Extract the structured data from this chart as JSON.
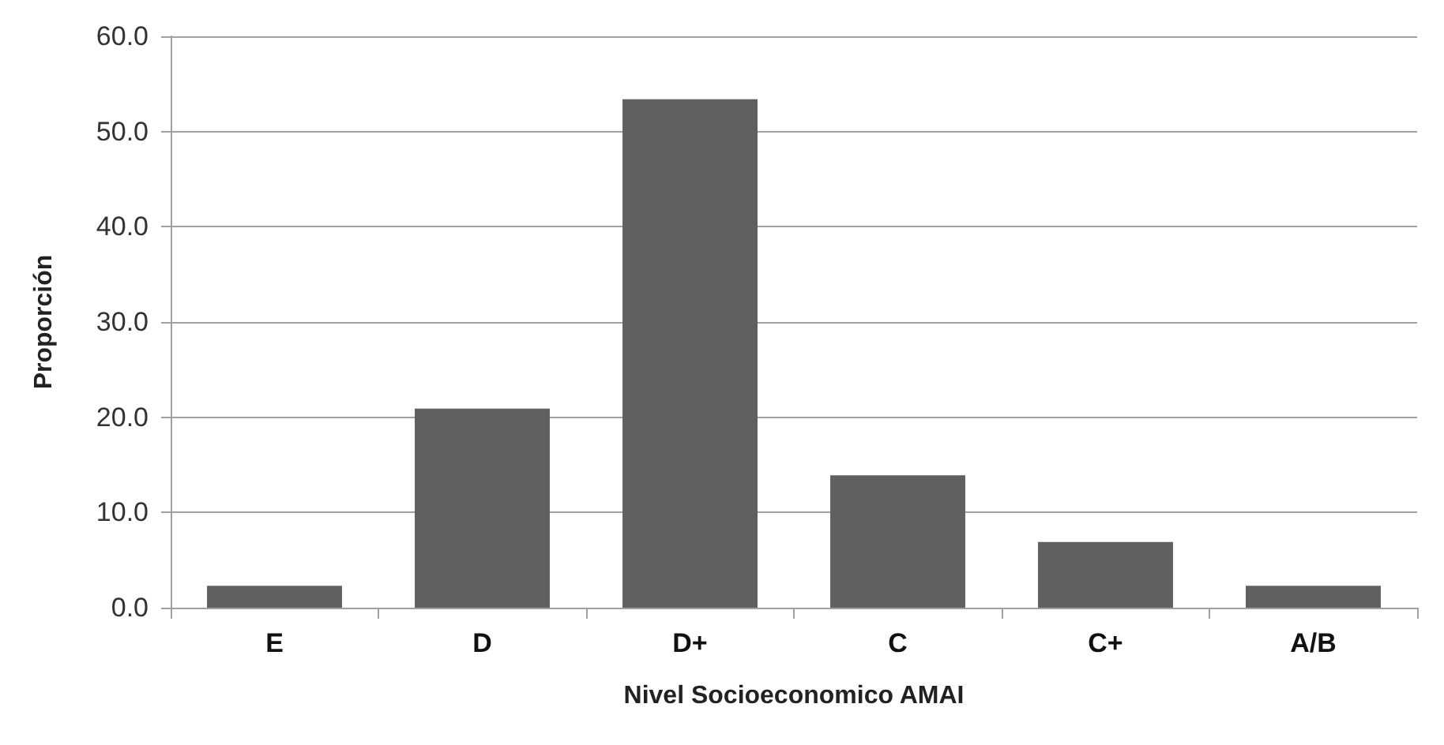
{
  "chart_data": {
    "type": "bar",
    "xlabel": "Nivel Socioeconomico AMAI",
    "ylabel": "Proporción",
    "categories": [
      "E",
      "D",
      "D+",
      "C",
      "C+",
      "A/B"
    ],
    "values": [
      2.3,
      20.9,
      53.4,
      13.9,
      6.9,
      2.3
    ],
    "color": "#606060",
    "ylim": [
      0,
      60
    ],
    "yticks": [
      {
        "value": 0,
        "label": "0.0"
      },
      {
        "value": 10,
        "label": "10.0"
      },
      {
        "value": 20,
        "label": "20.0"
      },
      {
        "value": 30,
        "label": "30.0"
      },
      {
        "value": 40,
        "label": "40.0"
      },
      {
        "value": 50,
        "label": "50.0"
      },
      {
        "value": 60,
        "label": "60.0"
      }
    ],
    "grid": "y"
  }
}
